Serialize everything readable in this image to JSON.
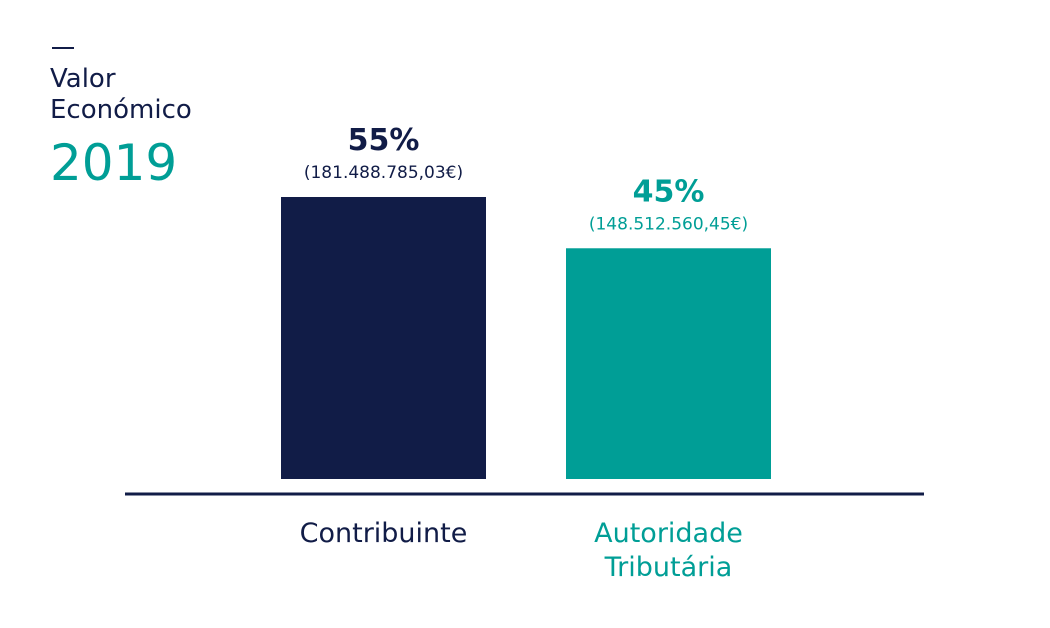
{
  "header": {
    "dash": "—",
    "title_line1": "Valor",
    "title_line2": "Económico",
    "year": "2019"
  },
  "colors": {
    "navy": "#111c47",
    "teal": "#009e96",
    "axis": "#111c47"
  },
  "chart_data": {
    "type": "bar",
    "title": "Valor Económico 2019",
    "categories": [
      [
        "Contribuinte"
      ],
      [
        "Autoridade",
        "Tributária"
      ]
    ],
    "values": [
      55,
      45
    ],
    "value_labels": [
      "55%",
      "45%"
    ],
    "amount_labels": [
      "(181.488.785,03€)",
      "(148.512.560,45€)"
    ],
    "amounts": [
      181488785.03,
      148512560.45
    ],
    "bar_colors": [
      "#111c47",
      "#009e96"
    ],
    "ylim": [
      0,
      55
    ],
    "grid": false,
    "legend": "none"
  }
}
